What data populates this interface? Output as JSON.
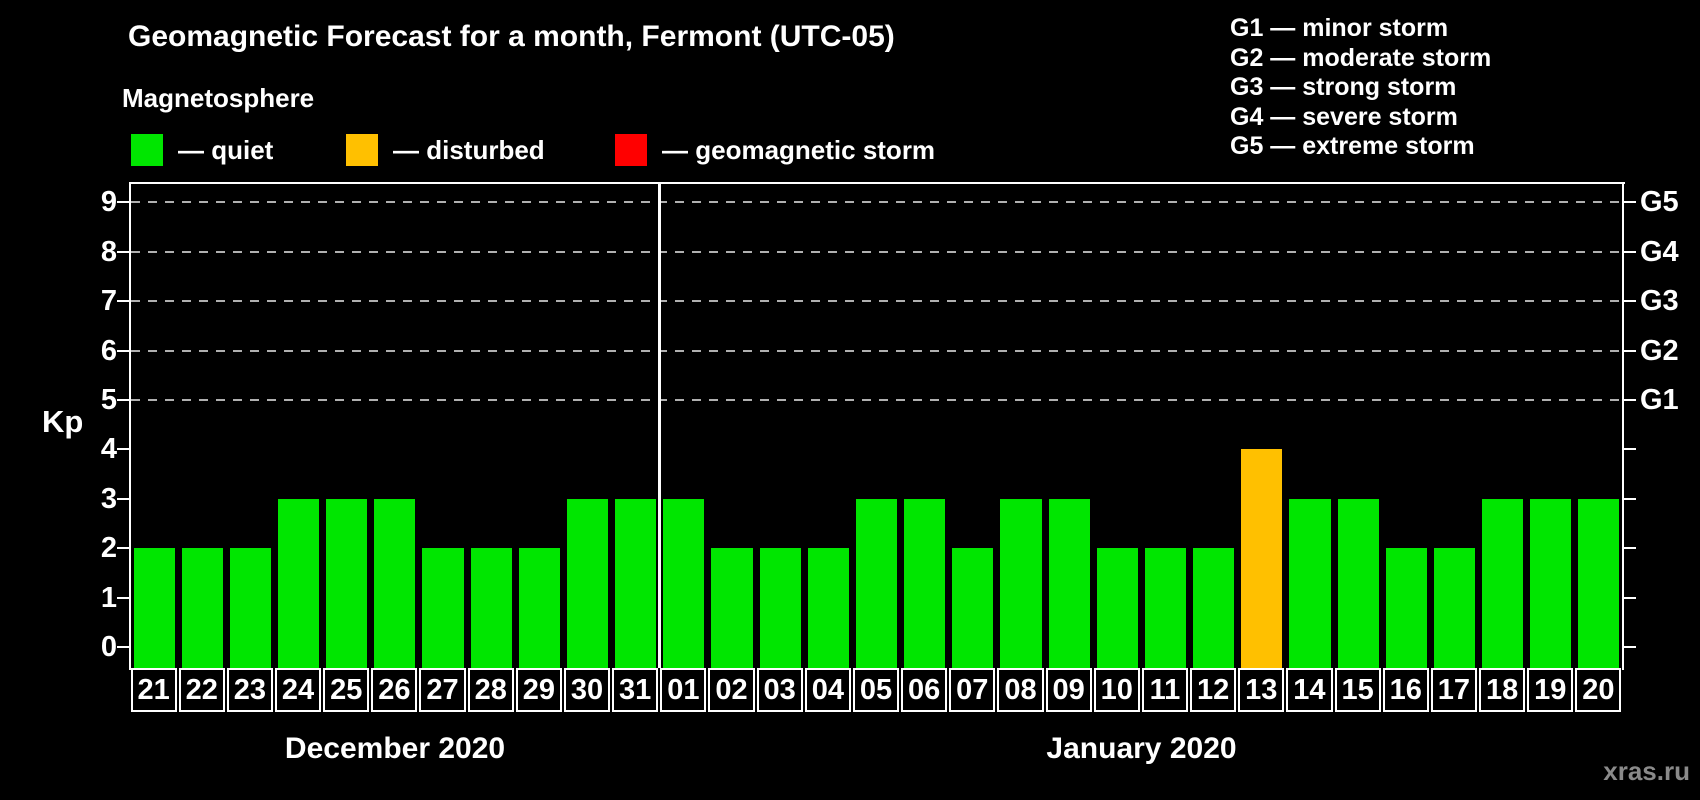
{
  "title": "Geomagnetic Forecast for a month, Fermont (UTC-05)",
  "subtitle": "Magnetosphere",
  "legend": {
    "items": [
      {
        "key": "quiet",
        "label": "— quiet",
        "color": "#00e600"
      },
      {
        "key": "disturbed",
        "label": "— disturbed",
        "color": "#ffc000"
      },
      {
        "key": "storm",
        "label": "— geomagnetic storm",
        "color": "#ff0000"
      }
    ]
  },
  "storm_scale": [
    "G1 — minor storm",
    "G2 — moderate storm",
    "G3 — strong storm",
    "G4 — severe storm",
    "G5 — extreme storm"
  ],
  "watermark": "xras.ru",
  "chart_data": {
    "type": "bar",
    "title": "Geomagnetic Forecast for a month, Fermont (UTC-05)",
    "xlabel": "",
    "ylabel": "Kp",
    "ylim": [
      0,
      9.4
    ],
    "yticks": [
      0,
      1,
      2,
      3,
      4,
      5,
      6,
      7,
      8,
      9
    ],
    "gridlines_at_kp": [
      5,
      6,
      7,
      8,
      9
    ],
    "grid": true,
    "legend_position": "top",
    "right_axis_labels": [
      {
        "kp": 5,
        "label": "G1"
      },
      {
        "kp": 6,
        "label": "G2"
      },
      {
        "kp": 7,
        "label": "G3"
      },
      {
        "kp": 8,
        "label": "G4"
      },
      {
        "kp": 9,
        "label": "G5"
      }
    ],
    "status_colors": {
      "quiet": "#00e600",
      "disturbed": "#ffc000",
      "storm": "#ff0000"
    },
    "months": [
      {
        "label": "December 2020",
        "days": [
          "21",
          "22",
          "23",
          "24",
          "25",
          "26",
          "27",
          "28",
          "29",
          "30",
          "31"
        ],
        "values": [
          2,
          2,
          2,
          3,
          3,
          3,
          2,
          2,
          2,
          3,
          3
        ],
        "statuses": [
          "quiet",
          "quiet",
          "quiet",
          "quiet",
          "quiet",
          "quiet",
          "quiet",
          "quiet",
          "quiet",
          "quiet",
          "quiet"
        ]
      },
      {
        "label": "January 2020",
        "days": [
          "01",
          "02",
          "03",
          "04",
          "05",
          "06",
          "07",
          "08",
          "09",
          "10",
          "11",
          "12",
          "13",
          "14",
          "15",
          "16",
          "17",
          "18",
          "19",
          "20"
        ],
        "values": [
          3,
          2,
          2,
          2,
          3,
          3,
          2,
          3,
          3,
          2,
          2,
          2,
          4,
          3,
          3,
          2,
          2,
          3,
          3,
          3
        ],
        "statuses": [
          "quiet",
          "quiet",
          "quiet",
          "quiet",
          "quiet",
          "quiet",
          "quiet",
          "quiet",
          "quiet",
          "quiet",
          "quiet",
          "quiet",
          "disturbed",
          "quiet",
          "quiet",
          "quiet",
          "quiet",
          "quiet",
          "quiet",
          "quiet"
        ]
      }
    ]
  }
}
